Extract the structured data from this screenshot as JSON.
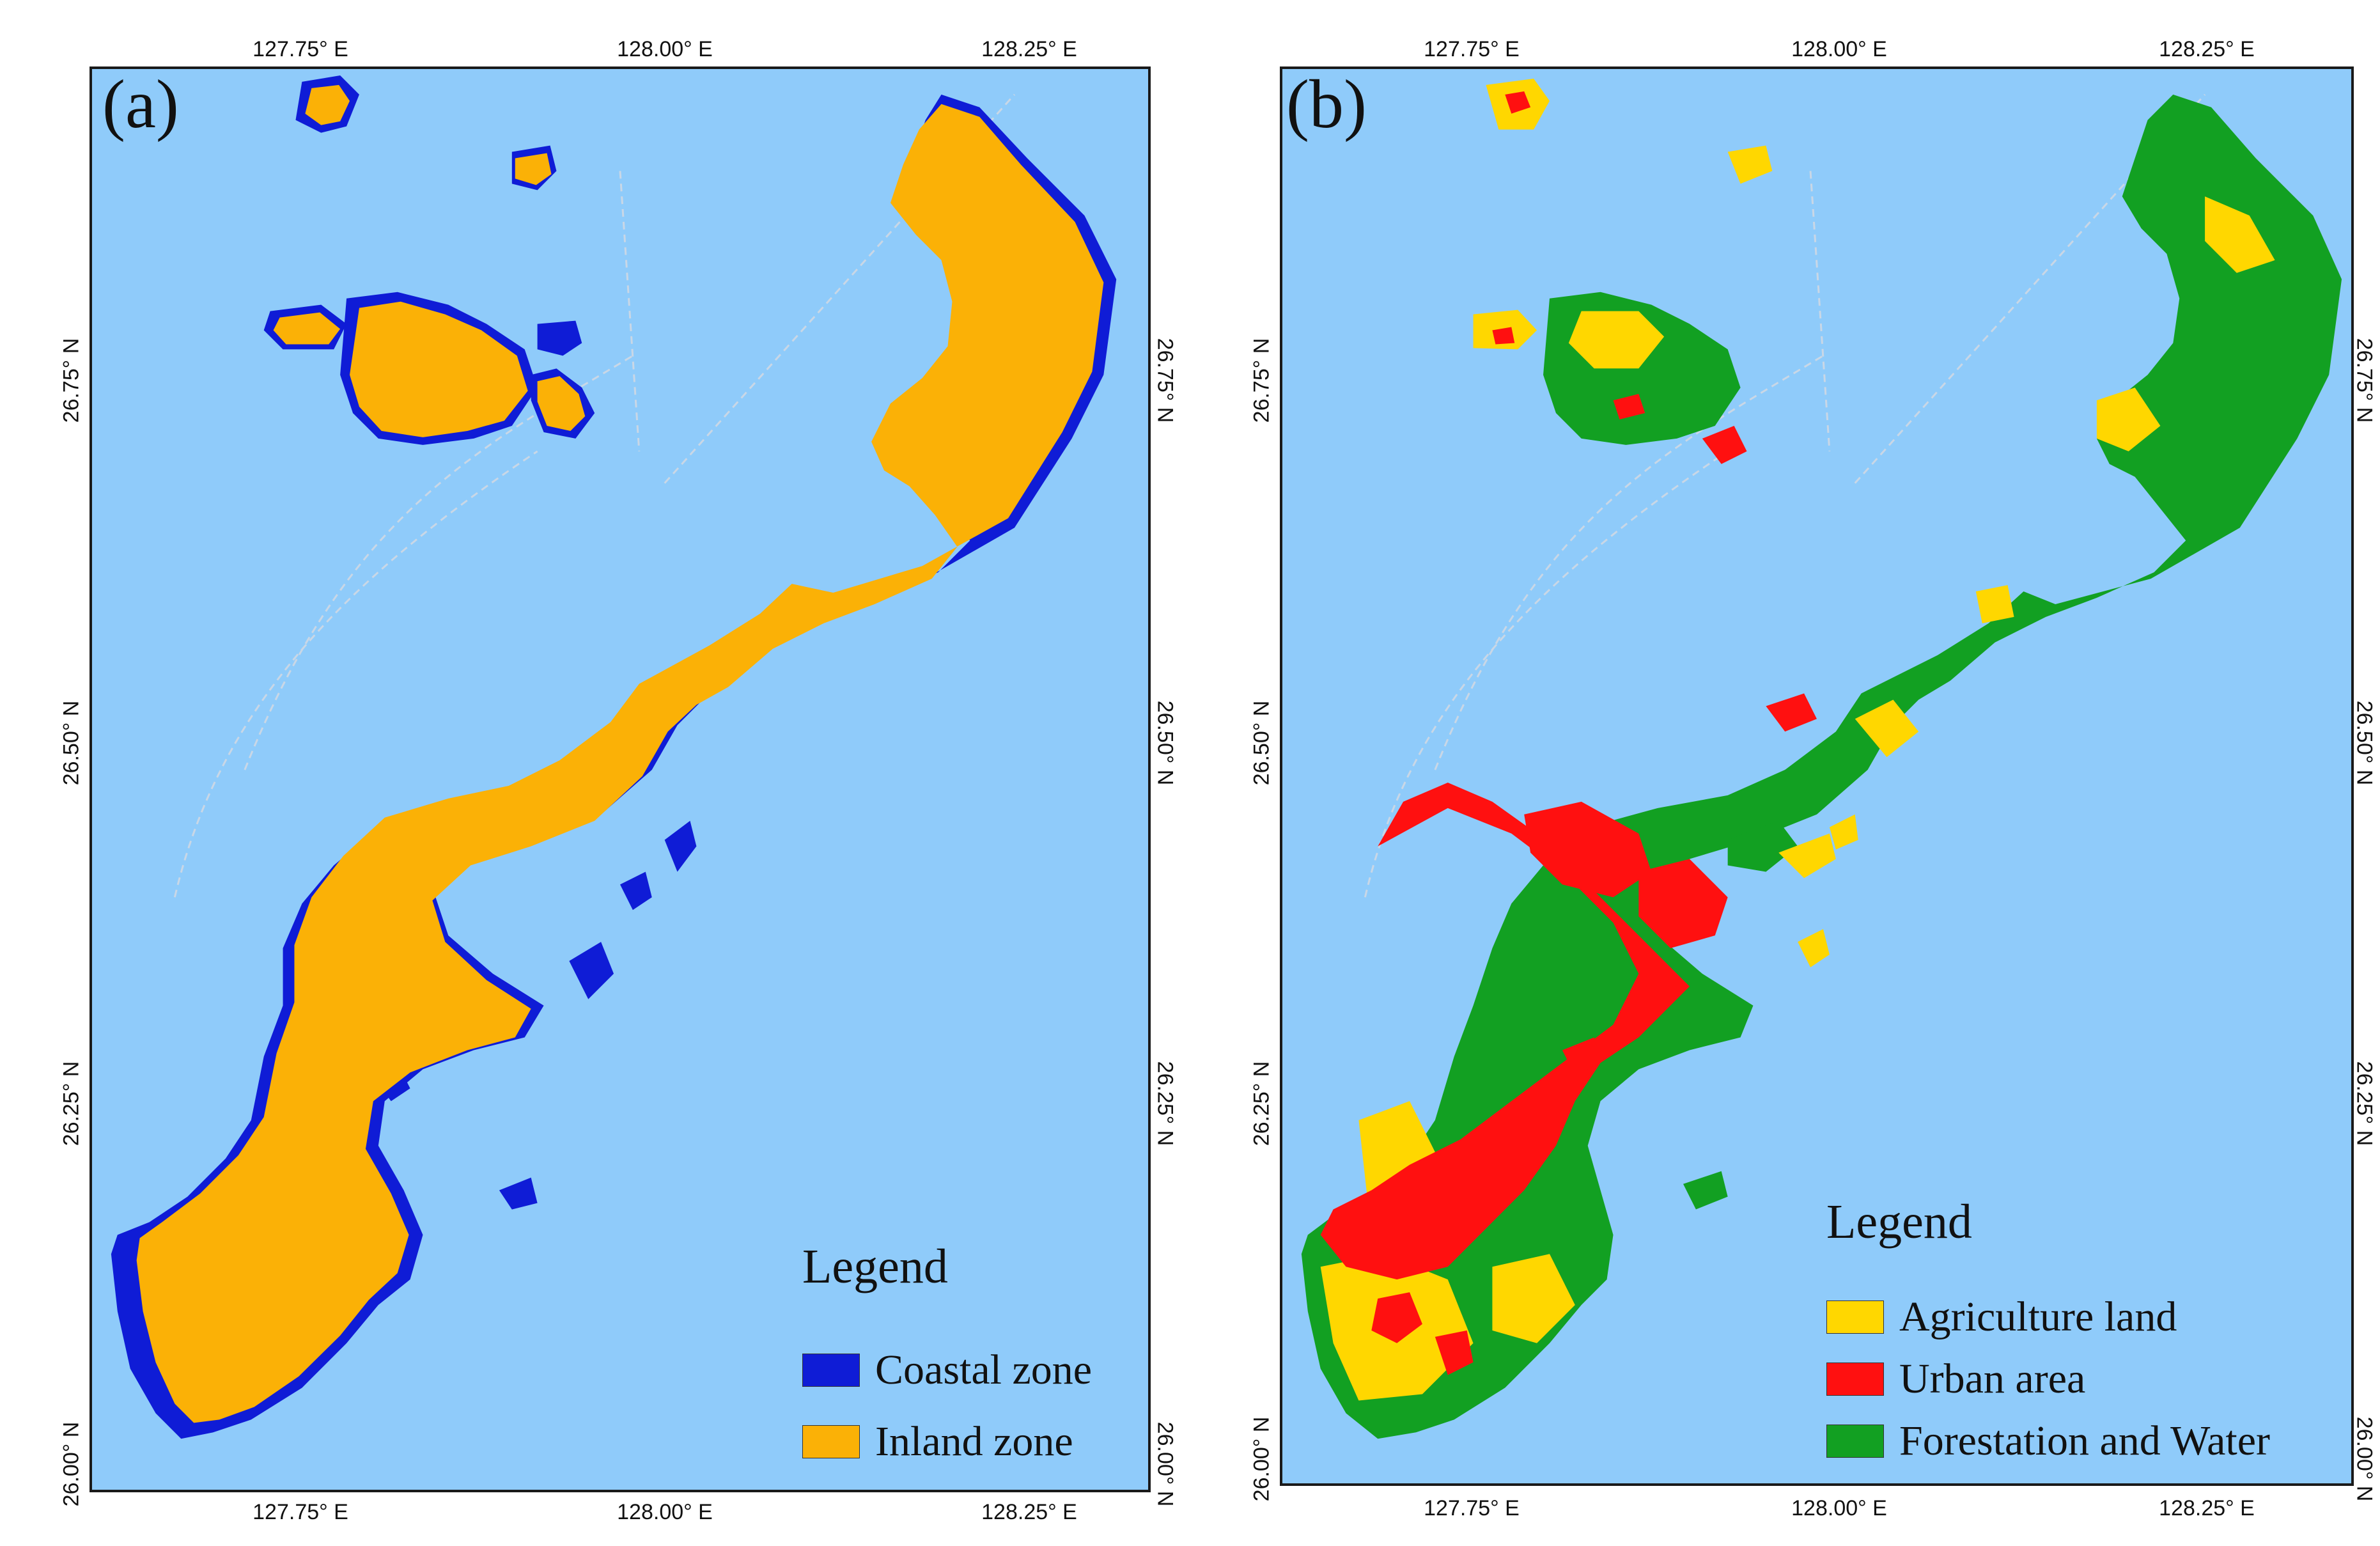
{
  "colors": {
    "sea": "#8fcbfa",
    "coastal": "#0f1cd6",
    "inland": "#fbb106",
    "agriculture": "#ffd700",
    "urban": "#ff1010",
    "forest": "#12a022"
  },
  "panel_a": {
    "label": "(a)",
    "legend_title": "Legend",
    "legend": [
      {
        "label": "Coastal zone",
        "color_key": "coastal"
      },
      {
        "label": "Inland zone",
        "color_key": "inland"
      }
    ]
  },
  "panel_b": {
    "label": "(b)",
    "legend_title": "Legend",
    "legend": [
      {
        "label": "Agriculture land",
        "color_key": "agriculture"
      },
      {
        "label": "Urban area",
        "color_key": "urban"
      },
      {
        "label": "Forestation and Water",
        "color_key": "forest"
      }
    ]
  },
  "axes": {
    "lon_ticks": [
      "127.75° E",
      "128.00° E",
      "128.25° E"
    ],
    "lat_ticks": [
      "26.75° N",
      "26.50° N",
      "26.25° N",
      "26.00° N"
    ]
  }
}
